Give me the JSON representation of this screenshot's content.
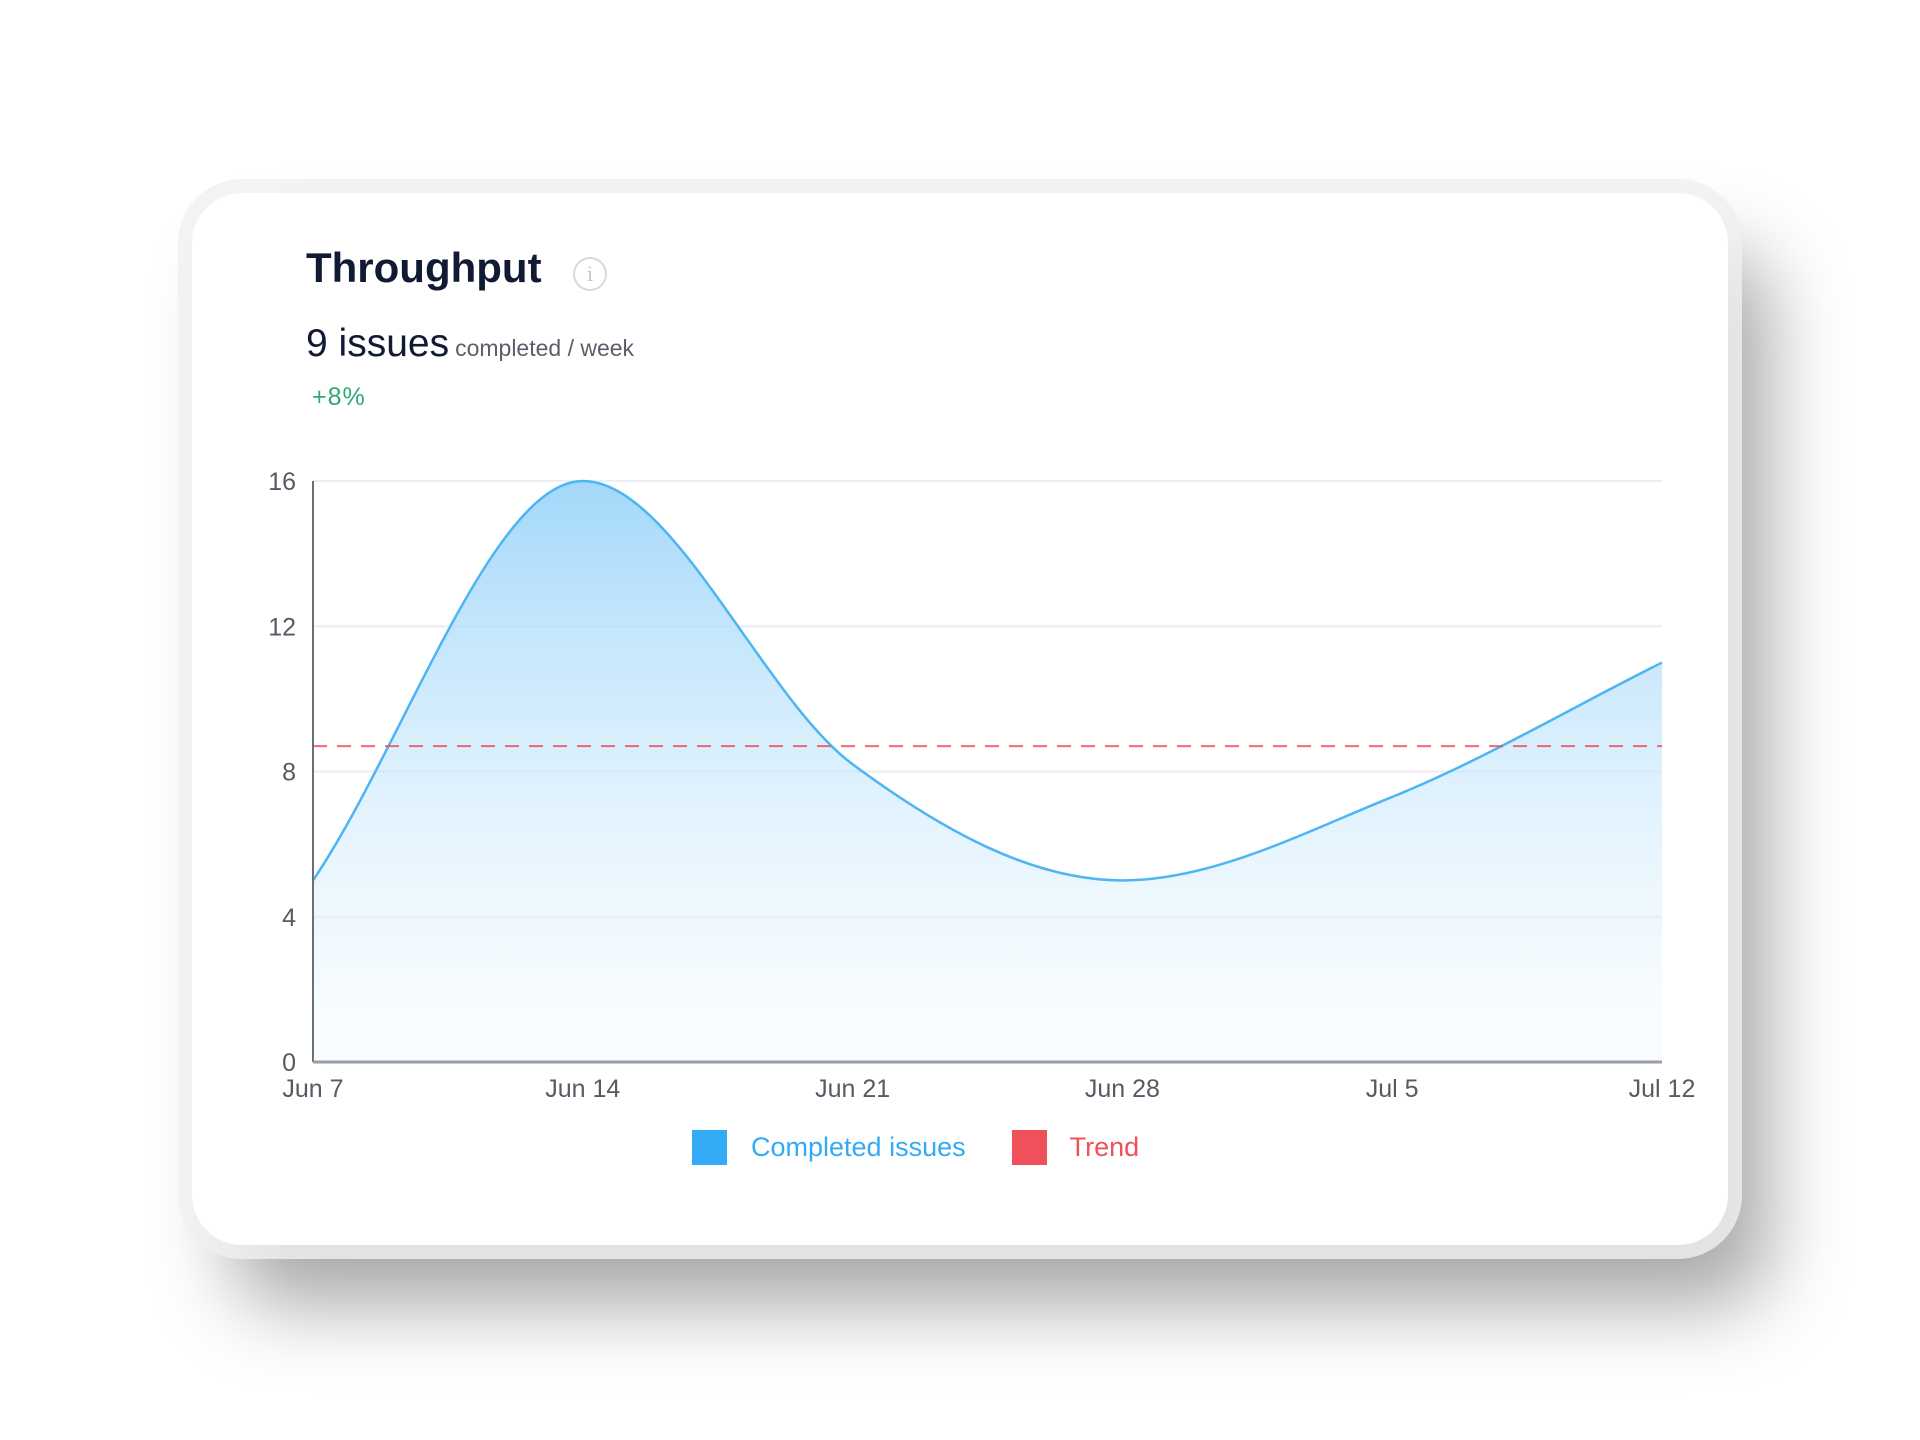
{
  "header": {
    "title": "Throughput",
    "info_icon": "info-circle-icon",
    "metric_value": "9 issues",
    "metric_unit": "completed / week",
    "delta": "+8%"
  },
  "colors": {
    "series": "#33aaf5",
    "trend": "#f0505a",
    "delta": "#2fa874"
  },
  "chart_data": {
    "type": "area",
    "categories": [
      "Jun 7",
      "Jun 14",
      "Jun 21",
      "Jun 28",
      "Jul 5",
      "Jul 12"
    ],
    "series": [
      {
        "name": "Completed issues",
        "values": [
          5,
          16,
          8.2,
          5,
          7.3,
          11
        ],
        "color": "#33aaf5"
      },
      {
        "name": "Trend",
        "values": [
          8.7,
          8.7,
          8.7,
          8.7,
          8.7,
          8.7
        ],
        "color": "#f0505a",
        "style": "dashed"
      }
    ],
    "yticks": [
      "0",
      "4",
      "8",
      "12",
      "16"
    ],
    "ylim": [
      0,
      16
    ],
    "grid": true,
    "legend": "bottom"
  }
}
